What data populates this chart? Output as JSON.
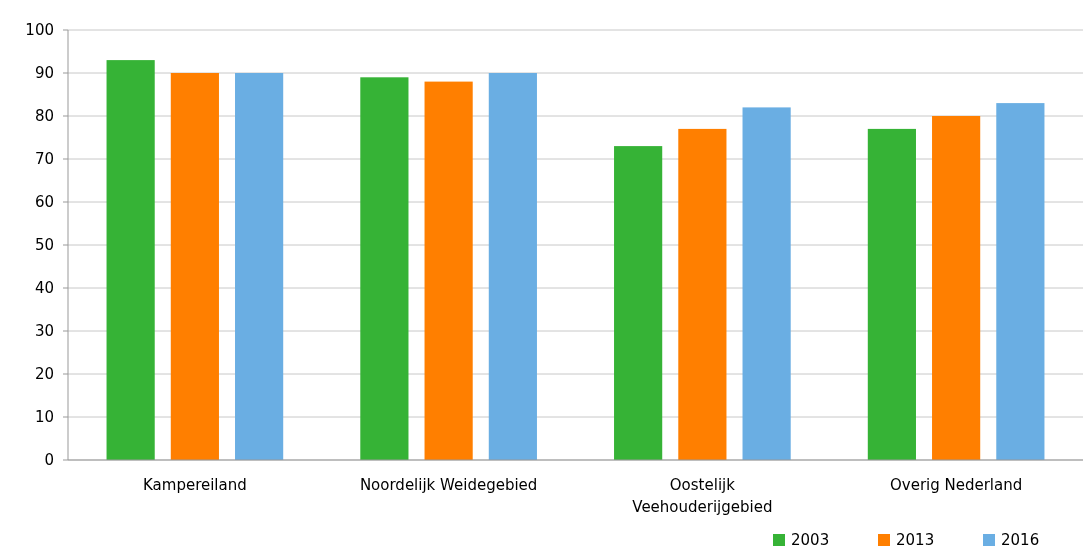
{
  "chart_data": {
    "type": "bar",
    "categories": [
      "Kampereiland",
      "Noordelijk Weidegebied",
      "Oostelijk Veehouderijgebied",
      "Overig Nederland"
    ],
    "series": [
      {
        "name": "2003",
        "color": "#36b336",
        "values": [
          93,
          89,
          73,
          77
        ]
      },
      {
        "name": "2013",
        "color": "#ff7f00",
        "values": [
          90,
          88,
          77,
          80
        ]
      },
      {
        "name": "2016",
        "color": "#6aaee3",
        "values": [
          90,
          90,
          82,
          83
        ]
      }
    ],
    "ylim": [
      0,
      100
    ],
    "yticks": [
      0,
      10,
      20,
      30,
      40,
      50,
      60,
      70,
      80,
      90,
      100
    ],
    "grid": "y",
    "legend": "bottom right"
  }
}
